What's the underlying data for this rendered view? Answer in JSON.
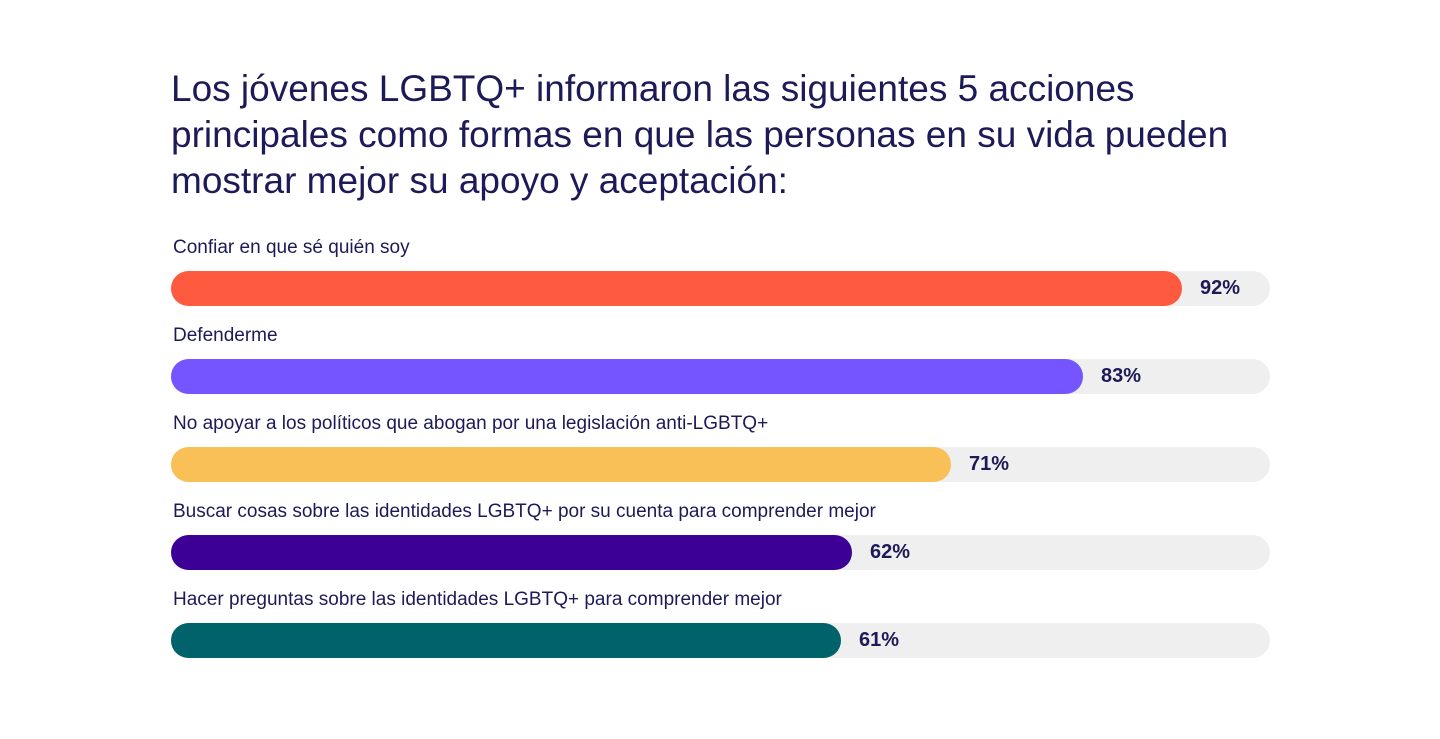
{
  "title": "Los jóvenes LGBTQ+ informaron las siguientes 5 acciones principales como formas en que las personas en su vida pueden mostrar mejor su apoyo y aceptación:",
  "chart_data": {
    "type": "bar",
    "orientation": "horizontal",
    "title": "Los jóvenes LGBTQ+ informaron las siguientes 5 acciones principales como formas en que las personas en su vida pueden mostrar mejor su apoyo y aceptación:",
    "xlabel": "",
    "ylabel": "",
    "xlim": [
      0,
      100
    ],
    "grid": false,
    "legend": "none",
    "track_color": "#efefef",
    "text_color": "#1c1a57",
    "bars": [
      {
        "category": "Confiar en que sé quién soy",
        "value": 92,
        "label": "92%",
        "color": "#fe5a3f"
      },
      {
        "category": "Defenderme",
        "value": 83,
        "label": "83%",
        "color": "#7455ff"
      },
      {
        "category": "No apoyar a los políticos que abogan por una legislación anti-LGBTQ+",
        "value": 71,
        "label": "71%",
        "color": "#f8c056"
      },
      {
        "category": "Buscar cosas sobre las identidades LGBTQ+ por su cuenta para comprender mejor",
        "value": 62,
        "label": "62%",
        "color": "#3d0097"
      },
      {
        "category": "Hacer preguntas sobre las identidades LGBTQ+ para comprender mejor",
        "value": 61,
        "label": "61%",
        "color": "#00626a"
      }
    ]
  }
}
